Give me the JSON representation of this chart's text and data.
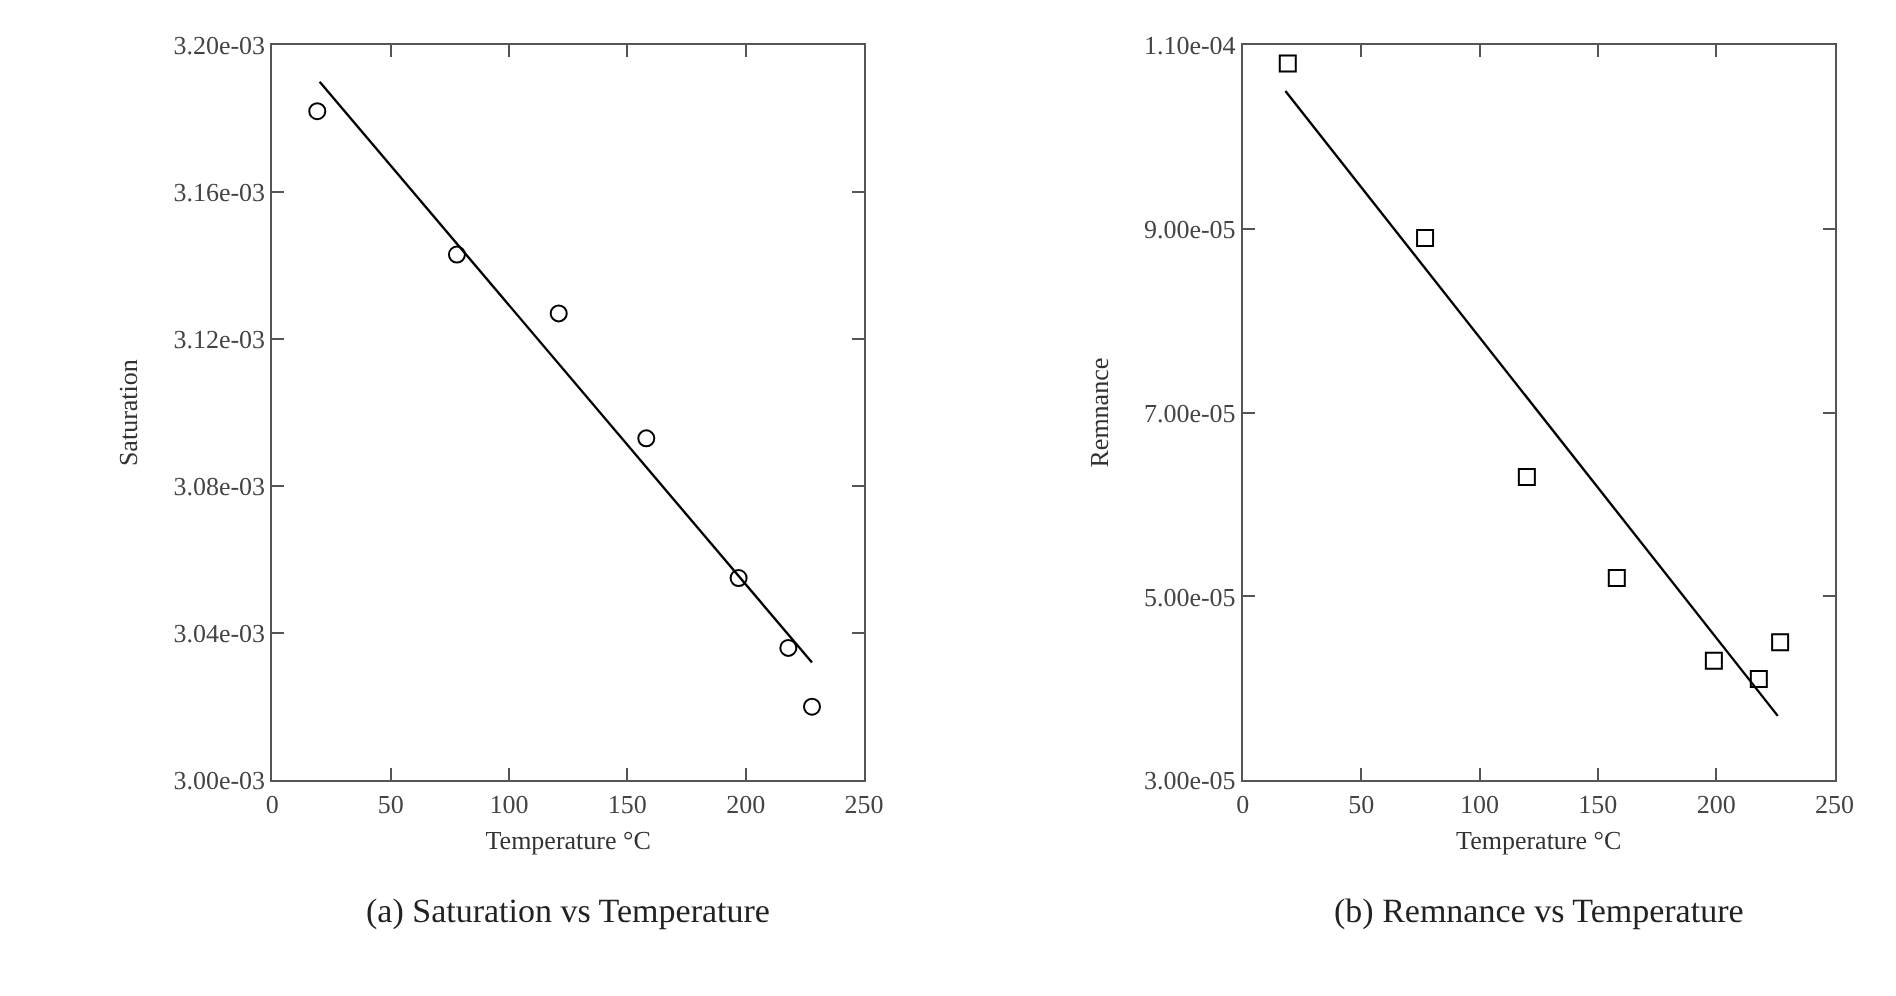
{
  "chart_data": [
    {
      "type": "scatter",
      "title": "(a) Saturation vs Temperature",
      "xlabel": "Temperature °C",
      "ylabel": "Saturation",
      "xlim": [
        0,
        250
      ],
      "xticks": [
        0,
        50,
        100,
        150,
        200,
        250
      ],
      "ylim": [
        0.003,
        0.0032
      ],
      "yticks": [
        {
          "value": 0.003,
          "label": "3.00e-03"
        },
        {
          "value": 0.00304,
          "label": "3.04e-03"
        },
        {
          "value": 0.00308,
          "label": "3.08e-03"
        },
        {
          "value": 0.00312,
          "label": "3.12e-03"
        },
        {
          "value": 0.00316,
          "label": "3.16e-03"
        },
        {
          "value": 0.0032,
          "label": "3.20e-03"
        }
      ],
      "series": [
        {
          "marker": "circle",
          "color": "#000000",
          "x": [
            19,
            78,
            121,
            158,
            197,
            218,
            228
          ],
          "values": [
            0.003182,
            0.003143,
            0.003127,
            0.003093,
            0.003055,
            0.003036,
            0.00302
          ]
        },
        {
          "type": "line",
          "marker": "none",
          "line_style": "solid",
          "color": "#000000",
          "x": [
            20,
            228
          ],
          "values": [
            0.00319,
            0.003032
          ]
        }
      ]
    },
    {
      "type": "scatter",
      "title": "(b) Remnance vs Temperature",
      "xlabel": "Temperature °C",
      "ylabel": "Remnance",
      "xlim": [
        0,
        250
      ],
      "xticks": [
        0,
        50,
        100,
        150,
        200,
        250
      ],
      "ylim": [
        3e-05,
        0.00011
      ],
      "yticks": [
        {
          "value": 3e-05,
          "label": "3.00e-05"
        },
        {
          "value": 5e-05,
          "label": "5.00e-05"
        },
        {
          "value": 7e-05,
          "label": "7.00e-05"
        },
        {
          "value": 9e-05,
          "label": "9.00e-05"
        },
        {
          "value": 0.00011,
          "label": "1.10e-04"
        }
      ],
      "series": [
        {
          "marker": "square",
          "color": "#000000",
          "x": [
            19,
            77,
            120,
            158,
            199,
            218,
            227
          ],
          "values": [
            0.000108,
            8.9e-05,
            6.3e-05,
            5.2e-05,
            4.3e-05,
            4.1e-05,
            4.5e-05
          ]
        },
        {
          "type": "line",
          "marker": "none",
          "line_style": "solid",
          "color": "#000000",
          "x": [
            18,
            226
          ],
          "values": [
            0.000105,
            3.7e-05
          ]
        }
      ]
    }
  ]
}
